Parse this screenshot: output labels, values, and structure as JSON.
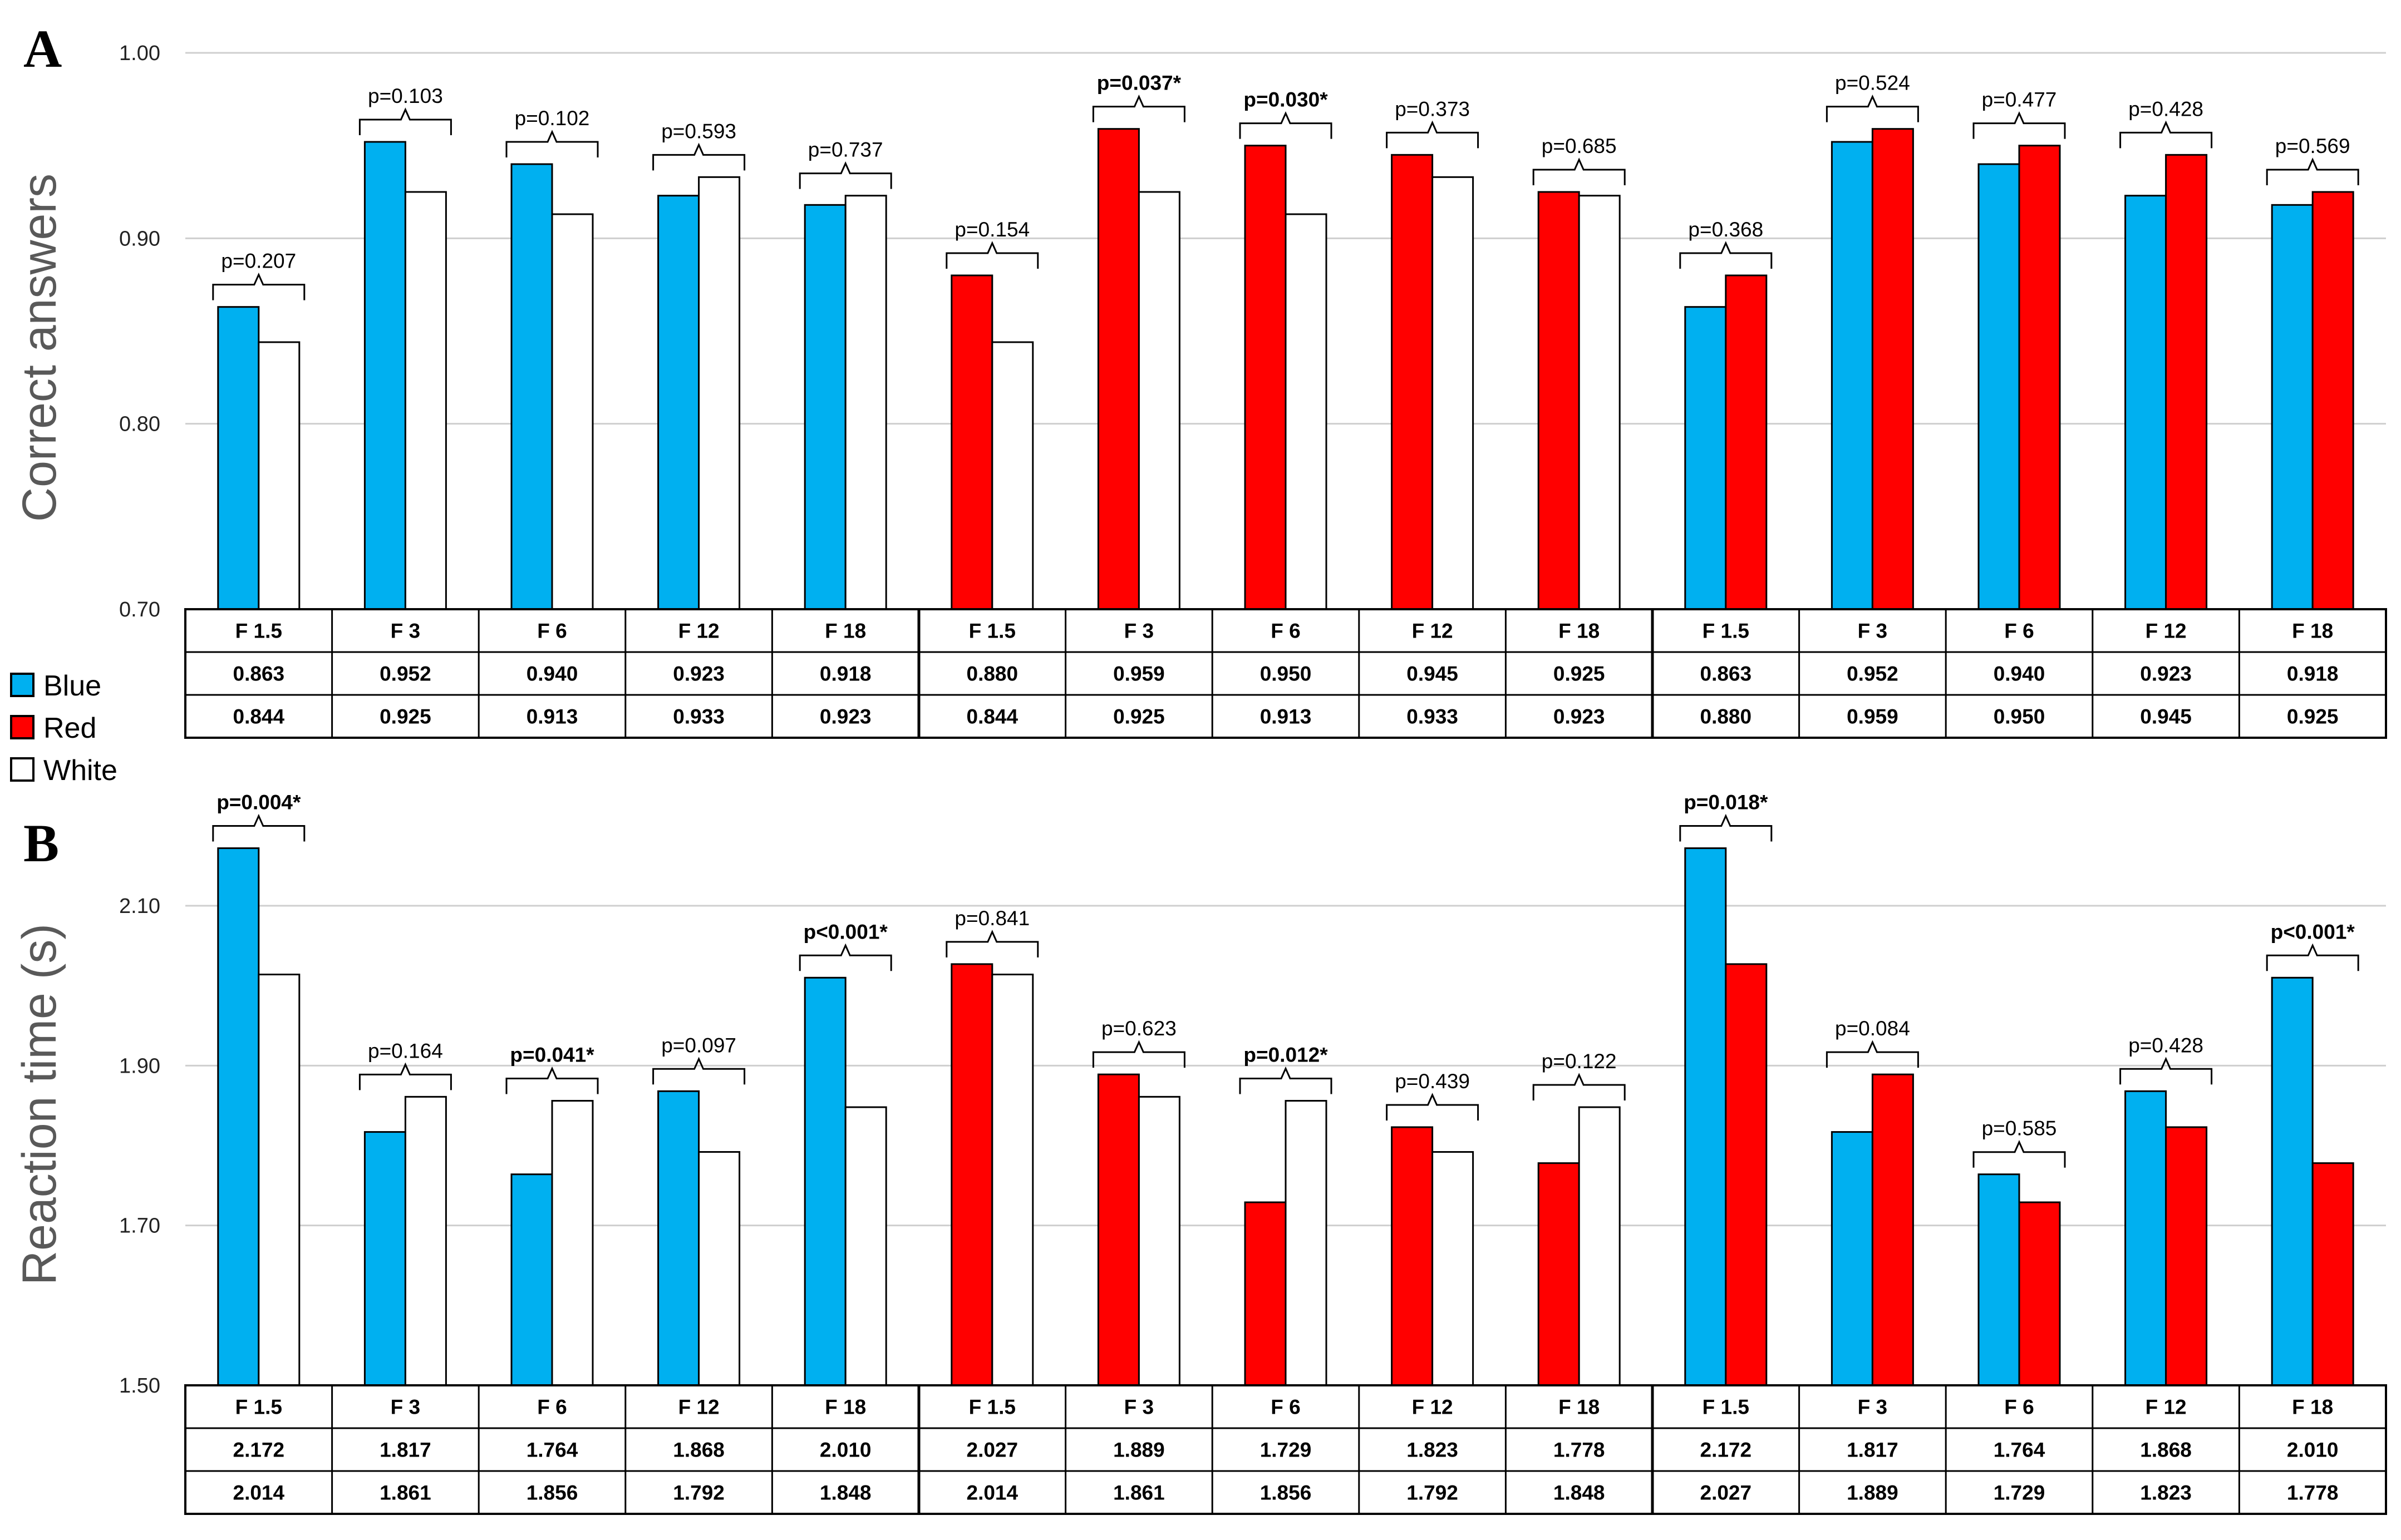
{
  "legend": [
    {
      "label": "Blue",
      "color": "#00B0F0"
    },
    {
      "label": "Red",
      "color": "#FF0000"
    },
    {
      "label": "White",
      "color": "#FFFFFF"
    }
  ],
  "chart_data": [
    {
      "panel": "A",
      "type": "bar",
      "ylabel": "Correct answers",
      "ylim": [
        0.7,
        1.0
      ],
      "yticks": [
        "0.70",
        "0.80",
        "0.90",
        "1.00"
      ],
      "ytick_values": [
        0.7,
        0.8,
        0.9,
        1.0
      ],
      "grid": true,
      "categories": [
        "F 1.5",
        "F 3",
        "F 6",
        "F 12",
        "F 18",
        "F 1.5",
        "F 3",
        "F 6",
        "F 12",
        "F 18",
        "F 1.5",
        "F 3",
        "F 6",
        "F 12",
        "F 18"
      ],
      "first_colors": [
        "blue",
        "blue",
        "blue",
        "blue",
        "blue",
        "red",
        "red",
        "red",
        "red",
        "red",
        "blue",
        "blue",
        "blue",
        "blue",
        "blue"
      ],
      "second_colors": [
        "white",
        "white",
        "white",
        "white",
        "white",
        "white",
        "white",
        "white",
        "white",
        "white",
        "red",
        "red",
        "red",
        "red",
        "red"
      ],
      "first_values": [
        0.863,
        0.952,
        0.94,
        0.923,
        0.918,
        0.88,
        0.959,
        0.95,
        0.945,
        0.925,
        0.863,
        0.952,
        0.94,
        0.923,
        0.918
      ],
      "second_values": [
        0.844,
        0.925,
        0.913,
        0.933,
        0.923,
        0.844,
        0.925,
        0.913,
        0.933,
        0.923,
        0.88,
        0.959,
        0.95,
        0.945,
        0.925
      ],
      "first_labels": [
        "0.863",
        "0.952",
        "0.940",
        "0.923",
        "0.918",
        "0.880",
        "0.959",
        "0.950",
        "0.945",
        "0.925",
        "0.863",
        "0.952",
        "0.940",
        "0.923",
        "0.918"
      ],
      "second_labels": [
        "0.844",
        "0.925",
        "0.913",
        "0.933",
        "0.923",
        "0.844",
        "0.925",
        "0.913",
        "0.933",
        "0.923",
        "0.880",
        "0.959",
        "0.950",
        "0.945",
        "0.925"
      ],
      "p_values": [
        "p=0.207",
        "p=0.103",
        "p=0.102",
        "p=0.593",
        "p=0.737",
        "p=0.154",
        "p=0.037*",
        "p=0.030*",
        "p=0.373",
        "p=0.685",
        "p=0.368",
        "p=0.524",
        "p=0.477",
        "p=0.428",
        "p=0.569"
      ],
      "significant": [
        false,
        false,
        false,
        false,
        false,
        false,
        true,
        true,
        false,
        false,
        false,
        false,
        false,
        false,
        false
      ]
    },
    {
      "panel": "B",
      "type": "bar",
      "ylabel": "Reaction time (s)",
      "ylim": [
        1.5,
        2.2
      ],
      "yticks": [
        "1.50",
        "1.70",
        "1.90",
        "2.10"
      ],
      "ytick_values": [
        1.5,
        1.7,
        1.9,
        2.1
      ],
      "grid": true,
      "categories": [
        "F 1.5",
        "F 3",
        "F 6",
        "F 12",
        "F 18",
        "F 1.5",
        "F 3",
        "F 6",
        "F 12",
        "F 18",
        "F 1.5",
        "F 3",
        "F 6",
        "F 12",
        "F 18"
      ],
      "first_colors": [
        "blue",
        "blue",
        "blue",
        "blue",
        "blue",
        "red",
        "red",
        "red",
        "red",
        "red",
        "blue",
        "blue",
        "blue",
        "blue",
        "blue"
      ],
      "second_colors": [
        "white",
        "white",
        "white",
        "white",
        "white",
        "white",
        "white",
        "white",
        "white",
        "white",
        "red",
        "red",
        "red",
        "red",
        "red"
      ],
      "first_values": [
        2.172,
        1.817,
        1.764,
        1.868,
        2.01,
        2.027,
        1.889,
        1.729,
        1.823,
        1.778,
        2.172,
        1.817,
        1.764,
        1.868,
        2.01
      ],
      "second_values": [
        2.014,
        1.861,
        1.856,
        1.792,
        1.848,
        2.014,
        1.861,
        1.856,
        1.792,
        1.848,
        2.027,
        1.889,
        1.729,
        1.823,
        1.778
      ],
      "first_labels": [
        "2.172",
        "1.817",
        "1.764",
        "1.868",
        "2.010",
        "2.027",
        "1.889",
        "1.729",
        "1.823",
        "1.778",
        "2.172",
        "1.817",
        "1.764",
        "1.868",
        "2.010"
      ],
      "second_labels": [
        "2.014",
        "1.861",
        "1.856",
        "1.792",
        "1.848",
        "2.014",
        "1.861",
        "1.856",
        "1.792",
        "1.848",
        "2.027",
        "1.889",
        "1.729",
        "1.823",
        "1.778"
      ],
      "p_values": [
        "p=0.004*",
        "p=0.164",
        "p=0.041*",
        "p=0.097",
        "p<0.001*",
        "p=0.841",
        "p=0.623",
        "p=0.012*",
        "p=0.439",
        "p=0.122",
        "p=0.018*",
        "p=0.084",
        "p=0.585",
        "p=0.428",
        "p<0.001*"
      ],
      "significant": [
        true,
        false,
        true,
        false,
        true,
        false,
        false,
        true,
        false,
        false,
        true,
        false,
        false,
        false,
        true
      ]
    }
  ]
}
